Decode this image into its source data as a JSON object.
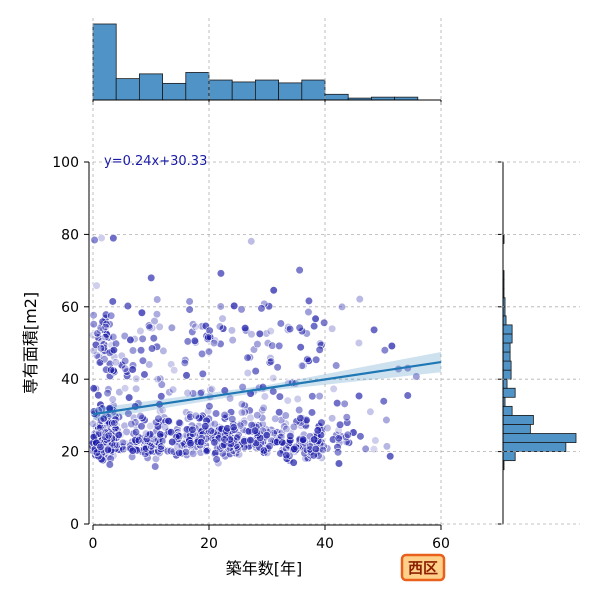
{
  "chart_data": {
    "type": "scatter",
    "xlabel": "築年数[年]",
    "ylabel": "専有面積[m2]",
    "xlim": [
      0,
      60
    ],
    "ylim": [
      0,
      100
    ],
    "xticks": [
      "0",
      "20",
      "40",
      "60"
    ],
    "yticks": [
      "0",
      "20",
      "40",
      "60",
      "80",
      "100"
    ],
    "grid": true,
    "regression": {
      "equation": "y=0.24x+30.33",
      "slope": 0.24,
      "intercept": 30.33,
      "color": "#1f77b4"
    },
    "point_color": "#1a1aa8",
    "marginal_x_histogram": {
      "bin_edges": [
        0,
        4,
        8,
        12,
        16,
        20,
        24,
        28,
        32,
        36,
        40,
        44,
        48,
        52,
        56
      ],
      "counts": [
        160,
        45,
        55,
        35,
        58,
        42,
        38,
        42,
        36,
        42,
        12,
        4,
        6,
        6
      ]
    },
    "marginal_y_histogram": {
      "bin_edges": [
        15,
        17.5,
        20,
        22.5,
        25,
        27.5,
        30,
        32.5,
        35,
        37.5,
        40,
        42.5,
        45,
        47.5,
        50,
        52.5,
        55,
        57.5,
        60,
        62.5,
        65,
        67.5,
        70,
        72.5,
        75,
        77.5,
        80
      ],
      "counts": [
        1,
        12,
        62,
        72,
        27,
        30,
        9,
        2,
        12,
        4,
        8,
        8,
        7,
        7,
        9,
        9,
        3,
        2,
        2,
        1,
        1,
        1,
        0,
        0,
        0,
        1
      ]
    },
    "hist_color": "#4f93c7",
    "annotation_badge": "西区"
  }
}
